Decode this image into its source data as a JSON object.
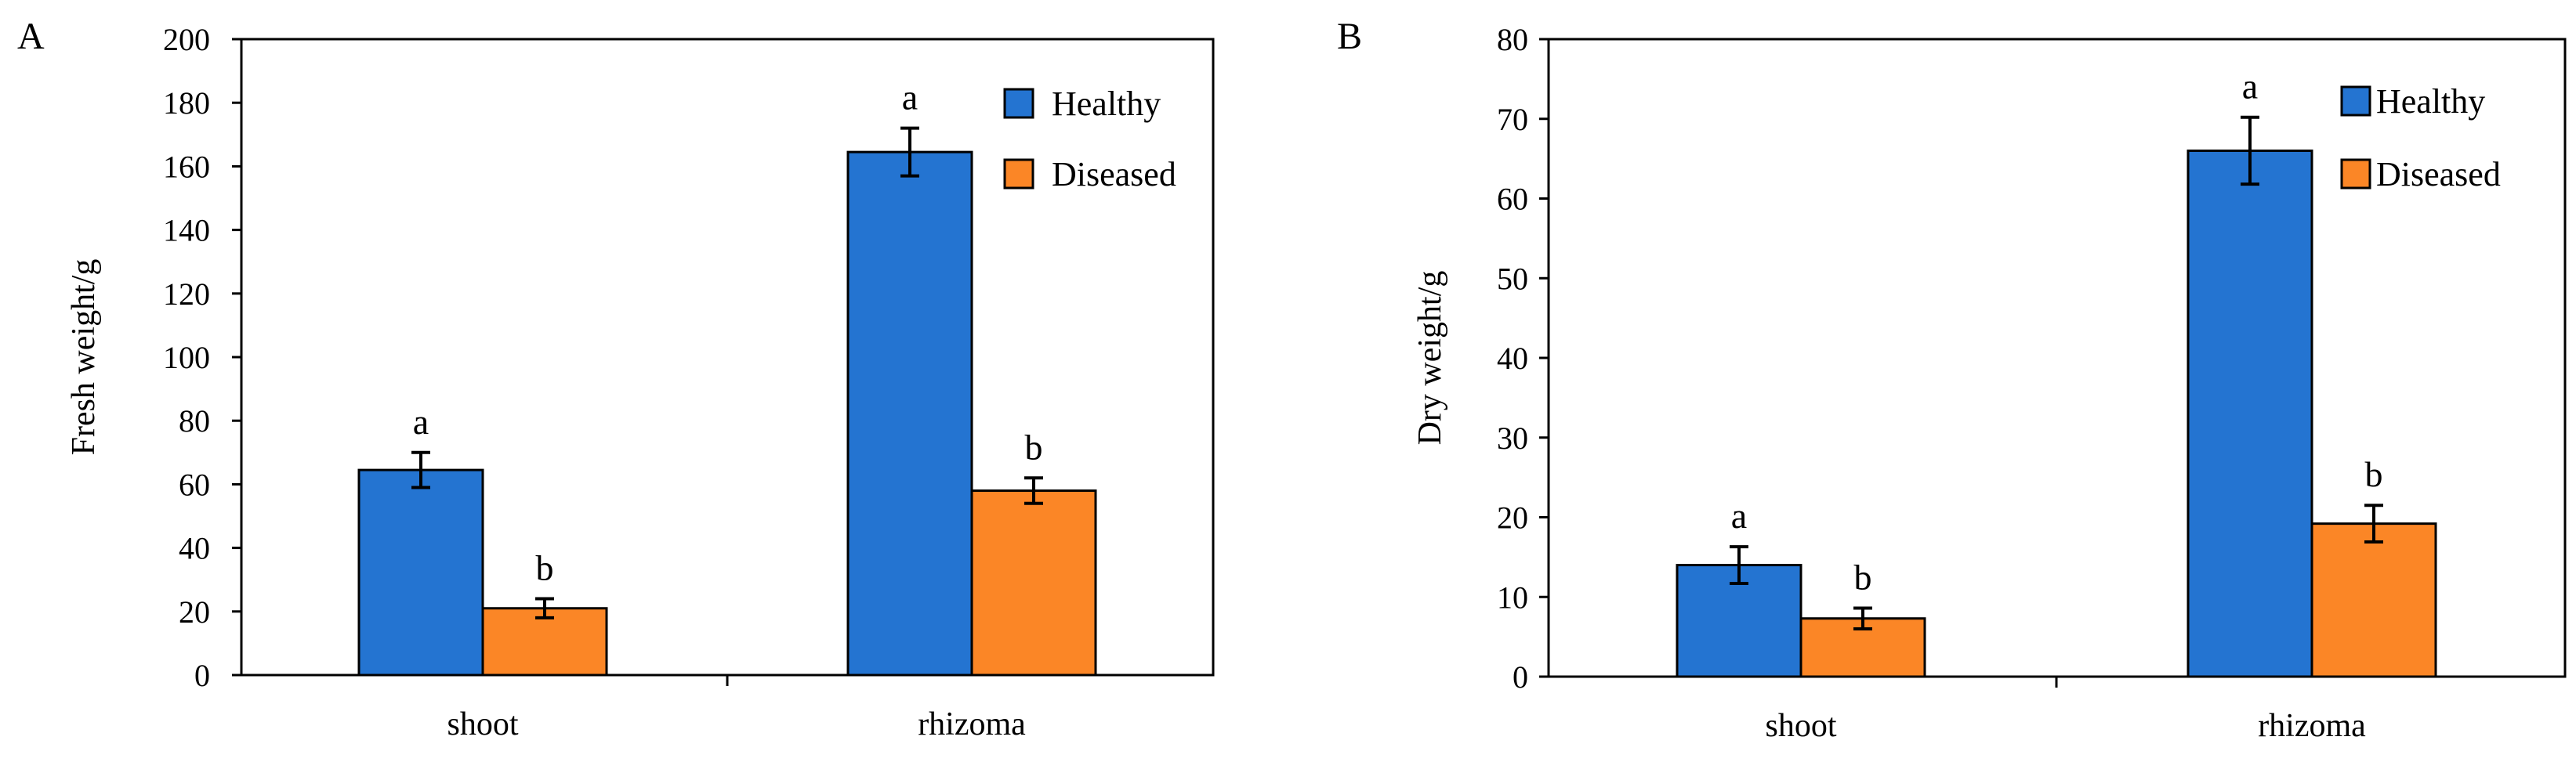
{
  "chart_data": [
    {
      "panel_label": "A",
      "type": "bar",
      "title": "",
      "xlabel": "",
      "ylabel": "Fresh weight/g",
      "ylim": [
        0,
        200
      ],
      "yticks": [
        "0",
        "20",
        "40",
        "60",
        "80",
        "100",
        "120",
        "140",
        "160",
        "180",
        "200"
      ],
      "ytick_values": [
        0,
        20,
        40,
        60,
        80,
        100,
        120,
        140,
        160,
        180,
        200
      ],
      "categories": [
        "shoot",
        "rhizoma"
      ],
      "legend_position": "top-right",
      "series": [
        {
          "name": "Healthy",
          "color": "#2474d1",
          "values": [
            64.5,
            164.5
          ],
          "errors": [
            5.5,
            7.5
          ],
          "labels": [
            "a",
            "a"
          ]
        },
        {
          "name": "Diseased",
          "color": "#fb8626",
          "values": [
            21,
            58
          ],
          "errors": [
            3,
            4
          ],
          "labels": [
            "b",
            "b"
          ]
        }
      ]
    },
    {
      "panel_label": "B",
      "type": "bar",
      "title": "",
      "xlabel": "",
      "ylabel": "Dry weight/g",
      "ylim": [
        0,
        80
      ],
      "yticks": [
        "0",
        "10",
        "20",
        "30",
        "40",
        "50",
        "60",
        "70",
        "80"
      ],
      "ytick_values": [
        0,
        10,
        20,
        30,
        40,
        50,
        60,
        70,
        80
      ],
      "categories": [
        "shoot",
        "rhizoma"
      ],
      "legend_position": "top-right",
      "series": [
        {
          "name": "Healthy",
          "color": "#2474d1",
          "values": [
            14,
            66
          ],
          "errors": [
            2.3,
            4.2
          ],
          "labels": [
            "a",
            "a"
          ]
        },
        {
          "name": "Diseased",
          "color": "#fb8626",
          "values": [
            7.3,
            19.2
          ],
          "errors": [
            1.3,
            2.3
          ],
          "labels": [
            "b",
            "b"
          ]
        }
      ]
    }
  ]
}
